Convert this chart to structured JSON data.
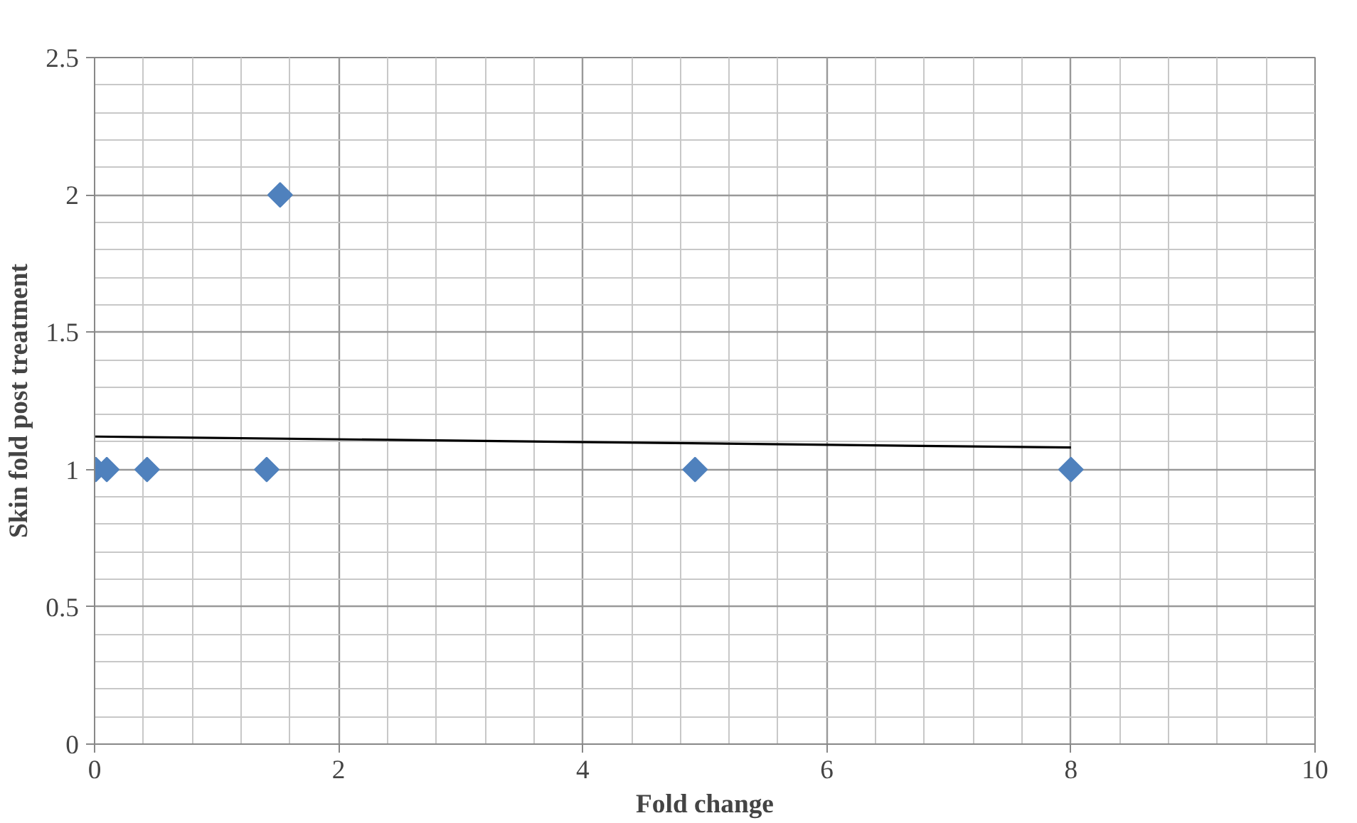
{
  "chart_data": {
    "type": "scatter",
    "xlabel": "Fold change",
    "ylabel": "Skin fold post treatment",
    "xlim": [
      0,
      10
    ],
    "ylim": [
      0,
      2.5
    ],
    "xticks": [
      0,
      2,
      4,
      6,
      8,
      10
    ],
    "yticks": [
      0,
      0.5,
      1,
      1.5,
      2,
      2.5
    ],
    "grid": true,
    "series": [
      {
        "type": "scatter",
        "marker": "diamond",
        "color": "#4f81bd",
        "x": [
          0.01,
          0.1,
          0.43,
          1.41,
          1.52,
          4.92,
          8.0
        ],
        "values": [
          1,
          1,
          1,
          1,
          2,
          1,
          1
        ]
      },
      {
        "type": "line",
        "color": "#000000",
        "x": [
          0,
          8
        ],
        "values": [
          1.12,
          1.08
        ]
      }
    ]
  }
}
